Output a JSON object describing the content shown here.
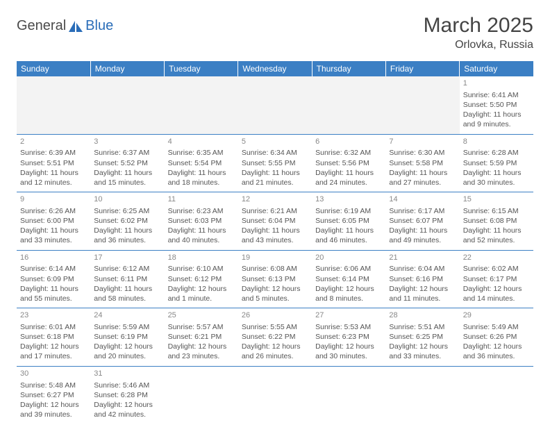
{
  "logo": {
    "part1": "General",
    "part2": "Blue"
  },
  "title": "March 2025",
  "location": "Orlovka, Russia",
  "colors": {
    "header_bg": "#3b7fc4",
    "header_text": "#ffffff",
    "border": "#3b7fc4",
    "daynum": "#888888",
    "body_text": "#555555",
    "blank_bg": "#f3f3f3",
    "logo_dark": "#4a4a4a",
    "logo_blue": "#2a6db8"
  },
  "weekdays": [
    "Sunday",
    "Monday",
    "Tuesday",
    "Wednesday",
    "Thursday",
    "Friday",
    "Saturday"
  ],
  "weeks": [
    [
      null,
      null,
      null,
      null,
      null,
      null,
      {
        "n": "1",
        "sr": "6:41 AM",
        "ss": "5:50 PM",
        "dl": "11 hours and 9 minutes."
      }
    ],
    [
      {
        "n": "2",
        "sr": "6:39 AM",
        "ss": "5:51 PM",
        "dl": "11 hours and 12 minutes."
      },
      {
        "n": "3",
        "sr": "6:37 AM",
        "ss": "5:52 PM",
        "dl": "11 hours and 15 minutes."
      },
      {
        "n": "4",
        "sr": "6:35 AM",
        "ss": "5:54 PM",
        "dl": "11 hours and 18 minutes."
      },
      {
        "n": "5",
        "sr": "6:34 AM",
        "ss": "5:55 PM",
        "dl": "11 hours and 21 minutes."
      },
      {
        "n": "6",
        "sr": "6:32 AM",
        "ss": "5:56 PM",
        "dl": "11 hours and 24 minutes."
      },
      {
        "n": "7",
        "sr": "6:30 AM",
        "ss": "5:58 PM",
        "dl": "11 hours and 27 minutes."
      },
      {
        "n": "8",
        "sr": "6:28 AM",
        "ss": "5:59 PM",
        "dl": "11 hours and 30 minutes."
      }
    ],
    [
      {
        "n": "9",
        "sr": "6:26 AM",
        "ss": "6:00 PM",
        "dl": "11 hours and 33 minutes."
      },
      {
        "n": "10",
        "sr": "6:25 AM",
        "ss": "6:02 PM",
        "dl": "11 hours and 36 minutes."
      },
      {
        "n": "11",
        "sr": "6:23 AM",
        "ss": "6:03 PM",
        "dl": "11 hours and 40 minutes."
      },
      {
        "n": "12",
        "sr": "6:21 AM",
        "ss": "6:04 PM",
        "dl": "11 hours and 43 minutes."
      },
      {
        "n": "13",
        "sr": "6:19 AM",
        "ss": "6:05 PM",
        "dl": "11 hours and 46 minutes."
      },
      {
        "n": "14",
        "sr": "6:17 AM",
        "ss": "6:07 PM",
        "dl": "11 hours and 49 minutes."
      },
      {
        "n": "15",
        "sr": "6:15 AM",
        "ss": "6:08 PM",
        "dl": "11 hours and 52 minutes."
      }
    ],
    [
      {
        "n": "16",
        "sr": "6:14 AM",
        "ss": "6:09 PM",
        "dl": "11 hours and 55 minutes."
      },
      {
        "n": "17",
        "sr": "6:12 AM",
        "ss": "6:11 PM",
        "dl": "11 hours and 58 minutes."
      },
      {
        "n": "18",
        "sr": "6:10 AM",
        "ss": "6:12 PM",
        "dl": "12 hours and 1 minute."
      },
      {
        "n": "19",
        "sr": "6:08 AM",
        "ss": "6:13 PM",
        "dl": "12 hours and 5 minutes."
      },
      {
        "n": "20",
        "sr": "6:06 AM",
        "ss": "6:14 PM",
        "dl": "12 hours and 8 minutes."
      },
      {
        "n": "21",
        "sr": "6:04 AM",
        "ss": "6:16 PM",
        "dl": "12 hours and 11 minutes."
      },
      {
        "n": "22",
        "sr": "6:02 AM",
        "ss": "6:17 PM",
        "dl": "12 hours and 14 minutes."
      }
    ],
    [
      {
        "n": "23",
        "sr": "6:01 AM",
        "ss": "6:18 PM",
        "dl": "12 hours and 17 minutes."
      },
      {
        "n": "24",
        "sr": "5:59 AM",
        "ss": "6:19 PM",
        "dl": "12 hours and 20 minutes."
      },
      {
        "n": "25",
        "sr": "5:57 AM",
        "ss": "6:21 PM",
        "dl": "12 hours and 23 minutes."
      },
      {
        "n": "26",
        "sr": "5:55 AM",
        "ss": "6:22 PM",
        "dl": "12 hours and 26 minutes."
      },
      {
        "n": "27",
        "sr": "5:53 AM",
        "ss": "6:23 PM",
        "dl": "12 hours and 30 minutes."
      },
      {
        "n": "28",
        "sr": "5:51 AM",
        "ss": "6:25 PM",
        "dl": "12 hours and 33 minutes."
      },
      {
        "n": "29",
        "sr": "5:49 AM",
        "ss": "6:26 PM",
        "dl": "12 hours and 36 minutes."
      }
    ],
    [
      {
        "n": "30",
        "sr": "5:48 AM",
        "ss": "6:27 PM",
        "dl": "12 hours and 39 minutes."
      },
      {
        "n": "31",
        "sr": "5:46 AM",
        "ss": "6:28 PM",
        "dl": "12 hours and 42 minutes."
      },
      null,
      null,
      null,
      null,
      null
    ]
  ],
  "labels": {
    "sunrise": "Sunrise:",
    "sunset": "Sunset:",
    "daylight": "Daylight:"
  }
}
